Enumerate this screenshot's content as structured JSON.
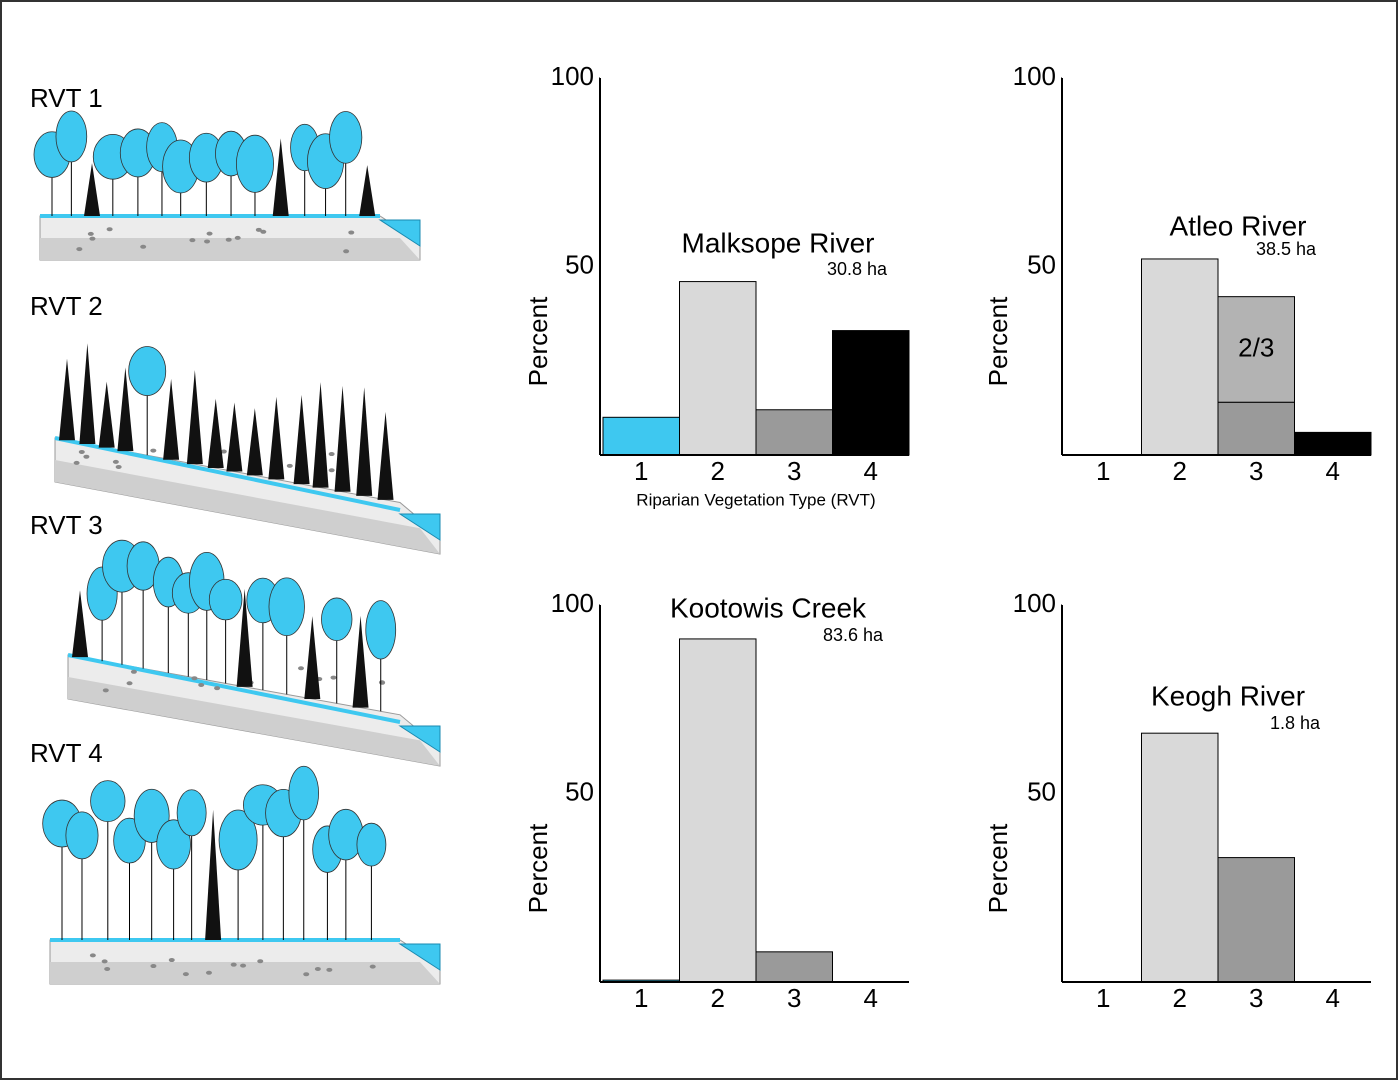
{
  "illustrations": {
    "labels": [
      "RVT 1",
      "RVT 2",
      "RVT 3",
      "RVT 4"
    ]
  },
  "chart_data": [
    {
      "type": "bar",
      "title": "Malksope River",
      "subtitle": "30.8 ha",
      "ylabel": "Percent",
      "xlabel": "Riparian Vegetation Type (RVT)",
      "categories": [
        "1",
        "2",
        "3",
        "4"
      ],
      "values": [
        10,
        46,
        12,
        33
      ],
      "colors": [
        "#3ec8f0",
        "#d9d9d9",
        "#9a9a9a",
        "#000000"
      ],
      "ylim": [
        0,
        100
      ],
      "yticks": [
        50,
        100
      ]
    },
    {
      "type": "bar",
      "title": "Atleo River",
      "subtitle": "38.5 ha",
      "ylabel": "Percent",
      "categories": [
        "1",
        "2",
        "3",
        "4"
      ],
      "values": [
        0,
        52,
        14,
        6
      ],
      "colors": [
        "#3ec8f0",
        "#d9d9d9",
        "#9a9a9a",
        "#000000"
      ],
      "stack_values": [
        null,
        null,
        28,
        null
      ],
      "stack_labels": [
        null,
        null,
        "2/3",
        null
      ],
      "stack_color": "#b3b3b3",
      "ylim": [
        0,
        100
      ],
      "yticks": [
        50,
        100
      ]
    },
    {
      "type": "bar",
      "title": "Kootowis Creek",
      "subtitle": "83.6 ha",
      "ylabel": "Percent",
      "categories": [
        "1",
        "2",
        "3",
        "4"
      ],
      "values": [
        0.5,
        91,
        8,
        0
      ],
      "colors": [
        "#3ec8f0",
        "#d9d9d9",
        "#9a9a9a",
        "#000000"
      ],
      "ylim": [
        0,
        100
      ],
      "yticks": [
        50,
        100
      ]
    },
    {
      "type": "bar",
      "title": "Keogh River",
      "subtitle": "1.8 ha",
      "ylabel": "Percent",
      "categories": [
        "1",
        "2",
        "3",
        "4"
      ],
      "values": [
        0,
        66,
        33,
        0
      ],
      "colors": [
        "#3ec8f0",
        "#d9d9d9",
        "#9a9a9a",
        "#000000"
      ],
      "ylim": [
        0,
        100
      ],
      "yticks": [
        50,
        100
      ]
    }
  ]
}
